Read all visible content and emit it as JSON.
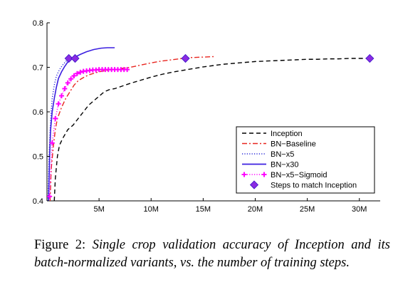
{
  "chart_data": {
    "type": "line",
    "title": "",
    "xlabel": "",
    "ylabel": "",
    "xlim": [
      0,
      32000000
    ],
    "ylim": [
      0.4,
      0.8
    ],
    "x_ticks": [
      5000000,
      10000000,
      15000000,
      20000000,
      25000000,
      30000000
    ],
    "x_tick_labels": [
      "5M",
      "10M",
      "15M",
      "20M",
      "25M",
      "30M"
    ],
    "y_ticks": [
      0.4,
      0.5,
      0.6,
      0.7,
      0.8
    ],
    "y_tick_labels": [
      "0.4",
      "0.5",
      "0.6",
      "0.7",
      "0.8"
    ],
    "grid": false,
    "legend_position": "bottom-right",
    "series": [
      {
        "name": "Inception",
        "color": "#000000",
        "line_style": "dashed",
        "marker": "none",
        "x": [
          700000,
          800000,
          1000000,
          1200000,
          1500000,
          2000000,
          2500000,
          3000000,
          3500000,
          4000000,
          4500000,
          5000000,
          5500000,
          6000000,
          6500000,
          7000000,
          8000000,
          9000000,
          10000000,
          11000000,
          12000000,
          13000000,
          14000000,
          15000000,
          16000000,
          17000000,
          18000000,
          19000000,
          20000000,
          21000000,
          22000000,
          23000000,
          24000000,
          25000000,
          26000000,
          27000000,
          28000000,
          29000000,
          30000000,
          31000000
        ],
        "y": [
          0.4,
          0.45,
          0.5,
          0.525,
          0.54,
          0.56,
          0.57,
          0.585,
          0.6,
          0.615,
          0.625,
          0.635,
          0.645,
          0.65,
          0.652,
          0.656,
          0.664,
          0.671,
          0.678,
          0.684,
          0.689,
          0.693,
          0.697,
          0.701,
          0.704,
          0.707,
          0.709,
          0.711,
          0.713,
          0.714,
          0.715,
          0.716,
          0.717,
          0.718,
          0.718,
          0.719,
          0.719,
          0.72,
          0.72,
          0.72
        ]
      },
      {
        "name": "BN−Baseline",
        "color": "#e8251f",
        "line_style": "dashdot",
        "marker": "none",
        "x": [
          300000,
          400000,
          600000,
          800000,
          1000000,
          1400000,
          1800000,
          2200000,
          2600000,
          3000000,
          3500000,
          4000000,
          5000000,
          6000000,
          7000000,
          8000000,
          9000000,
          10000000,
          11000000,
          12000000,
          13000000,
          13500000,
          14000000,
          15000000,
          16000000
        ],
        "y": [
          0.4,
          0.47,
          0.52,
          0.56,
          0.585,
          0.61,
          0.63,
          0.645,
          0.66,
          0.67,
          0.677,
          0.683,
          0.69,
          0.694,
          0.697,
          0.7,
          0.705,
          0.71,
          0.714,
          0.717,
          0.72,
          0.722,
          0.722,
          0.723,
          0.724
        ]
      },
      {
        "name": "BN−x5",
        "color": "#2a2ad8",
        "line_style": "dotted",
        "marker": "none",
        "x": [
          100000,
          200000,
          300000,
          400000,
          500000,
          700000,
          900000,
          1200000,
          1500000,
          1800000,
          2100000
        ],
        "y": [
          0.4,
          0.5,
          0.56,
          0.6,
          0.63,
          0.66,
          0.68,
          0.695,
          0.705,
          0.713,
          0.72
        ]
      },
      {
        "name": "BN−x30",
        "color": "#3b1fe0",
        "line_style": "solid",
        "marker": "none",
        "x": [
          150000,
          250000,
          350000,
          500000,
          700000,
          900000,
          1100000,
          1400000,
          1700000,
          2000000,
          2300000,
          2700000,
          3200000,
          3800000,
          4500000,
          5200000,
          5800000,
          6500000
        ],
        "y": [
          0.4,
          0.5,
          0.56,
          0.6,
          0.63,
          0.655,
          0.675,
          0.69,
          0.702,
          0.712,
          0.718,
          0.723,
          0.729,
          0.735,
          0.74,
          0.743,
          0.744,
          0.744
        ]
      },
      {
        "name": "BN−x5−Sigmoid",
        "color": "#ff00ff",
        "line_style": "dotted",
        "marker": "plus",
        "x": [
          250000,
          500000,
          800000,
          1100000,
          1400000,
          1700000,
          2000000,
          2300000,
          2600000,
          2900000,
          3200000,
          3500000,
          3800000,
          4100000,
          4400000,
          4700000,
          5000000,
          5300000,
          5600000,
          5900000,
          6200000,
          6500000,
          6800000,
          7100000,
          7400000,
          7700000
        ],
        "y": [
          0.41,
          0.53,
          0.585,
          0.618,
          0.636,
          0.652,
          0.665,
          0.674,
          0.681,
          0.686,
          0.689,
          0.691,
          0.692,
          0.693,
          0.694,
          0.694,
          0.695,
          0.695,
          0.695,
          0.695,
          0.695,
          0.695,
          0.695,
          0.695,
          0.695,
          0.695
        ]
      },
      {
        "name": "Steps to match Inception",
        "color": "#8a2be2",
        "line_style": "none",
        "marker": "diamond",
        "x": [
          2100000,
          2700000,
          13300000,
          31000000
        ],
        "y": [
          0.72,
          0.72,
          0.72,
          0.72
        ]
      }
    ]
  },
  "caption": {
    "prefix": "Figure 2:",
    "body": "Single crop validation accuracy of Inception and its batch-normalized variants, vs. the number of training steps."
  }
}
